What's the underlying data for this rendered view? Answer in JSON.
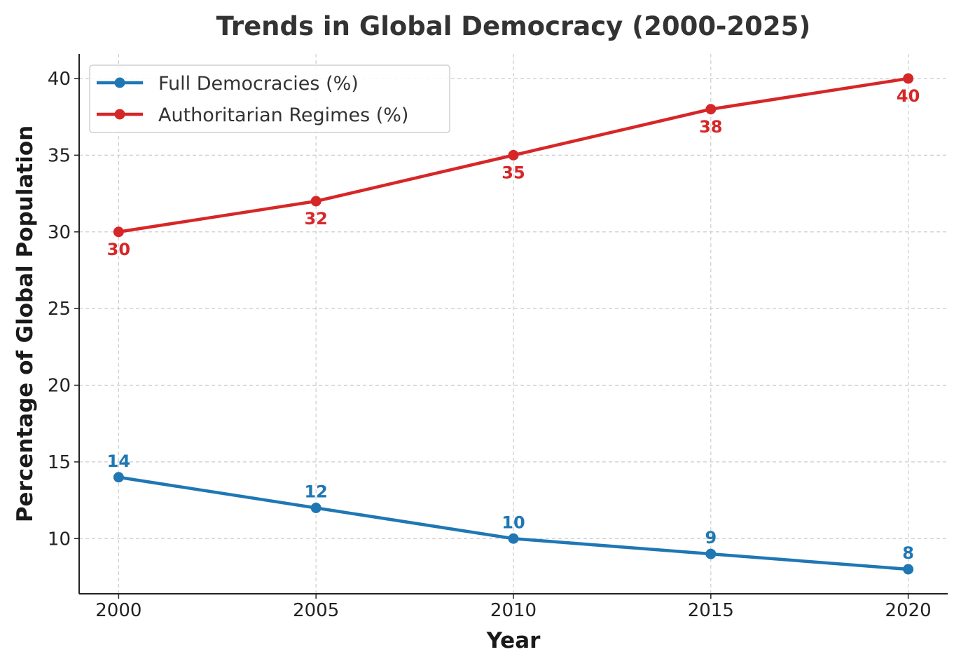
{
  "chart_data": {
    "type": "line",
    "title": "Trends in Global Democracy (2000-2025)",
    "xlabel": "Year",
    "ylabel": "Percentage of Global Population",
    "x": [
      2000,
      2005,
      2010,
      2015,
      2020
    ],
    "xticks": [
      "2000",
      "2005",
      "2010",
      "2015",
      "2020"
    ],
    "yticks": [
      "10",
      "15",
      "20",
      "25",
      "30",
      "35",
      "40"
    ],
    "xlim": [
      1999,
      2021
    ],
    "ylim": [
      6.4,
      41.6
    ],
    "grid": true,
    "legend_position": "top-left",
    "series": [
      {
        "name": "Full Democracies (%)",
        "values": [
          14,
          12,
          10,
          9,
          8
        ],
        "color": "#1f77b4",
        "label_position": "above"
      },
      {
        "name": "Authoritarian Regimes (%)",
        "values": [
          30,
          32,
          35,
          38,
          40
        ],
        "color": "#d62728",
        "label_position": "below"
      }
    ]
  }
}
